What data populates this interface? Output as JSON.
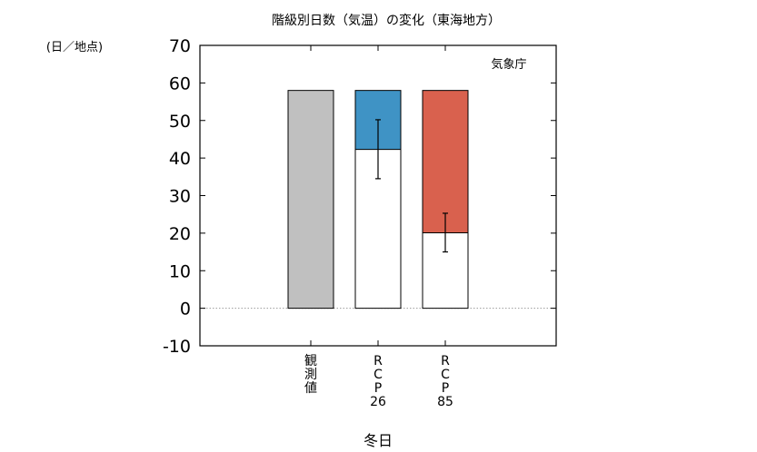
{
  "chart_data": {
    "type": "bar",
    "title": "階級別日数（気温）の変化（東海地方）",
    "ylabel": "(日／地点)",
    "xlabel": "冬日",
    "credit": "気象庁",
    "ylim": [
      -10,
      70
    ],
    "yticks": [
      -10,
      0,
      10,
      20,
      30,
      40,
      50,
      60,
      70
    ],
    "zero_line": "dotted",
    "grid": false,
    "categories": [
      {
        "label_lines": [
          "観",
          "測",
          "値"
        ]
      },
      {
        "label_lines": [
          "R",
          "C",
          "P",
          "26"
        ]
      },
      {
        "label_lines": [
          "R",
          "C",
          "P",
          "85"
        ]
      }
    ],
    "bars": [
      {
        "total": 58,
        "base": 58,
        "change": 0,
        "error_low": null,
        "error_high": null,
        "color": "#c0c0c0"
      },
      {
        "total": 58,
        "base": 42.3,
        "change": -15.7,
        "error_low": 34.5,
        "error_high": 50.2,
        "color": "#3f93c5"
      },
      {
        "total": 58,
        "base": 20.1,
        "change": -37.9,
        "error_low": 15.0,
        "error_high": 25.3,
        "color": "#d9614e"
      }
    ]
  }
}
